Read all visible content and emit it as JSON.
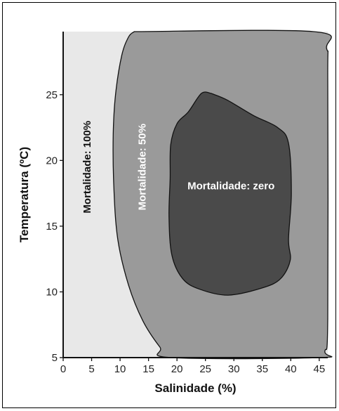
{
  "chart_data": {
    "type": "area",
    "title": "",
    "xlabel": "Salinidade (%)",
    "ylabel": "Temperatura (ºC)",
    "xlim": [
      0,
      46.5
    ],
    "ylim": [
      5,
      29.8
    ],
    "x_ticks": [
      0,
      5,
      10,
      15,
      20,
      25,
      30,
      35,
      40,
      45
    ],
    "y_ticks": [
      5,
      10,
      15,
      20,
      25
    ],
    "grid": false,
    "legend": "none",
    "colors": {
      "mortalidade_100": "#e8e8e8",
      "mortalidade_50": "#9a9a9a",
      "mortalidade_zero": "#4a4a4a",
      "outline": "#111111"
    },
    "regions": [
      {
        "name": "Mortalidade: 100%",
        "description_values": "outer region (fills whole plot area)",
        "boundary": [
          [
            0,
            29.8
          ],
          [
            46.5,
            29.8
          ],
          [
            46.5,
            5
          ],
          [
            0,
            5
          ]
        ]
      },
      {
        "name": "Mortalidade: 50%",
        "boundary": [
          [
            12.5,
            29.8
          ],
          [
            44,
            29.8
          ],
          [
            46.3,
            28.5
          ],
          [
            46.5,
            26
          ],
          [
            46.5,
            8
          ],
          [
            46,
            5.5
          ],
          [
            45,
            5
          ],
          [
            19,
            5
          ],
          [
            17,
            5.8
          ],
          [
            14,
            7.8
          ],
          [
            11.5,
            10.5
          ],
          [
            9.6,
            14
          ],
          [
            8.9,
            18
          ],
          [
            8.8,
            22
          ],
          [
            9.2,
            25
          ],
          [
            10.3,
            28
          ],
          [
            11.5,
            29.4
          ],
          [
            12.5,
            29.8
          ]
        ]
      },
      {
        "name": "Mortalidade: zero",
        "boundary": [
          [
            26,
            25.1
          ],
          [
            28.8,
            24.6
          ],
          [
            33.5,
            23.4
          ],
          [
            37.7,
            22.5
          ],
          [
            39.6,
            21.3
          ],
          [
            40.1,
            17.5
          ],
          [
            39.6,
            14
          ],
          [
            39.9,
            12.4
          ],
          [
            38.2,
            11
          ],
          [
            35,
            10.3
          ],
          [
            29,
            9.75
          ],
          [
            24,
            10.2
          ],
          [
            21,
            11
          ],
          [
            19.1,
            12.8
          ],
          [
            18.6,
            15.7
          ],
          [
            18.8,
            18.6
          ],
          [
            18.9,
            21.2
          ],
          [
            20,
            22.8
          ],
          [
            22,
            23.7
          ],
          [
            24.3,
            25.1
          ],
          [
            26,
            25.1
          ]
        ]
      }
    ],
    "labels": [
      {
        "text": "Mortalidade: 100%",
        "x": 4.3,
        "y": 19.5,
        "rotation": -90,
        "color": "#111111"
      },
      {
        "text": "Mortalidade: 50%",
        "x": 14,
        "y": 19.5,
        "rotation": -90,
        "color": "#ffffff"
      },
      {
        "text": "Mortalidade: zero",
        "x": 29.5,
        "y": 18,
        "rotation": 0,
        "color": "#ffffff"
      }
    ]
  }
}
